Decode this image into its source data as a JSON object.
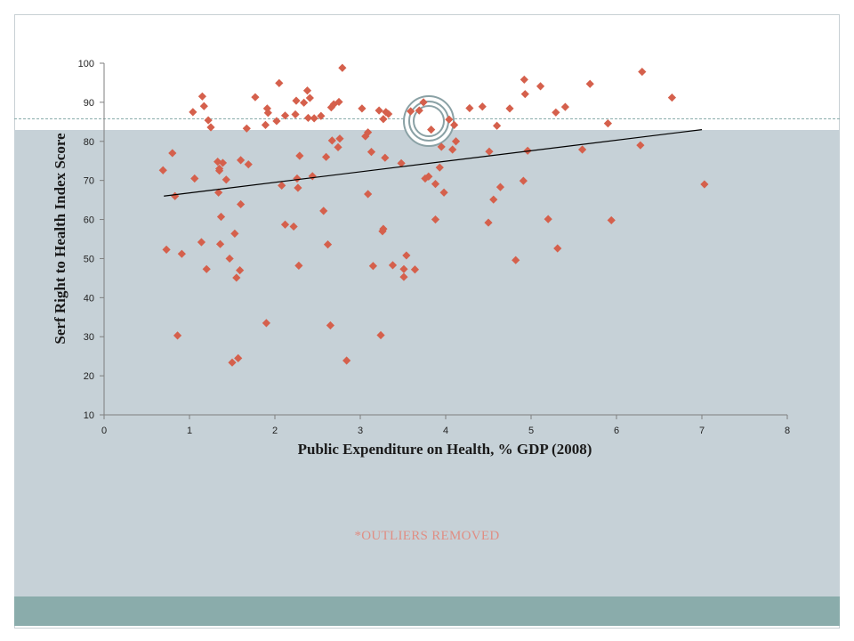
{
  "note": "*OUTLIERS REMOVED",
  "chart_data": {
    "type": "scatter",
    "xlabel": "Public Expenditure on Health, % GDP (2008)",
    "ylabel": "Serf Right to Health Index Score",
    "xlim": [
      0,
      8
    ],
    "ylim": [
      10,
      100
    ],
    "xticks": [
      0,
      1,
      2,
      3,
      4,
      5,
      6,
      7,
      8
    ],
    "yticks": [
      10,
      20,
      30,
      40,
      50,
      60,
      70,
      80,
      90,
      100
    ],
    "grid": false,
    "marker_color": "#d5604c",
    "trendline": {
      "x": [
        0.7,
        7.0
      ],
      "y": [
        66.0,
        83.0
      ],
      "color": "#000000"
    },
    "points": [
      [
        0.69,
        72.6
      ],
      [
        0.73,
        52.3
      ],
      [
        0.8,
        77.0
      ],
      [
        0.83,
        66.0
      ],
      [
        0.86,
        30.3
      ],
      [
        0.91,
        51.2
      ],
      [
        1.04,
        87.5
      ],
      [
        1.06,
        70.5
      ],
      [
        1.14,
        54.2
      ],
      [
        1.15,
        91.5
      ],
      [
        1.17,
        89.0
      ],
      [
        1.2,
        47.3
      ],
      [
        1.22,
        85.4
      ],
      [
        1.25,
        83.6
      ],
      [
        1.33,
        74.8
      ],
      [
        1.34,
        66.9
      ],
      [
        1.35,
        73.0
      ],
      [
        1.35,
        72.5
      ],
      [
        1.36,
        53.7
      ],
      [
        1.37,
        60.7
      ],
      [
        1.39,
        74.5
      ],
      [
        1.43,
        70.2
      ],
      [
        1.47,
        50.0
      ],
      [
        1.5,
        23.4
      ],
      [
        1.53,
        56.4
      ],
      [
        1.55,
        45.1
      ],
      [
        1.57,
        24.5
      ],
      [
        1.59,
        47.0
      ],
      [
        1.6,
        75.2
      ],
      [
        1.6,
        63.9
      ],
      [
        1.67,
        83.3
      ],
      [
        1.69,
        74.1
      ],
      [
        1.77,
        91.3
      ],
      [
        1.89,
        84.2
      ],
      [
        1.9,
        33.5
      ],
      [
        1.91,
        88.4
      ],
      [
        1.92,
        87.3
      ],
      [
        2.02,
        85.2
      ],
      [
        2.05,
        94.9
      ],
      [
        2.08,
        68.7
      ],
      [
        2.12,
        86.6
      ],
      [
        2.12,
        58.7
      ],
      [
        2.22,
        58.2
      ],
      [
        2.24,
        86.9
      ],
      [
        2.25,
        90.4
      ],
      [
        2.26,
        70.5
      ],
      [
        2.27,
        68.1
      ],
      [
        2.28,
        48.2
      ],
      [
        2.29,
        76.3
      ],
      [
        2.34,
        89.9
      ],
      [
        2.38,
        93.0
      ],
      [
        2.39,
        86.0
      ],
      [
        2.41,
        91.1
      ],
      [
        2.44,
        71.1
      ],
      [
        2.46,
        85.9
      ],
      [
        2.54,
        86.5
      ],
      [
        2.57,
        62.2
      ],
      [
        2.6,
        76.0
      ],
      [
        2.62,
        53.6
      ],
      [
        2.65,
        32.9
      ],
      [
        2.66,
        88.7
      ],
      [
        2.67,
        80.2
      ],
      [
        2.69,
        89.5
      ],
      [
        2.74,
        78.5
      ],
      [
        2.75,
        90.1
      ],
      [
        2.76,
        80.7
      ],
      [
        2.79,
        98.8
      ],
      [
        2.84,
        23.9
      ],
      [
        3.02,
        88.4
      ],
      [
        3.06,
        81.3
      ],
      [
        3.09,
        82.3
      ],
      [
        3.09,
        66.5
      ],
      [
        3.13,
        77.3
      ],
      [
        3.15,
        48.1
      ],
      [
        3.22,
        87.9
      ],
      [
        3.24,
        30.4
      ],
      [
        3.26,
        57.0
      ],
      [
        3.27,
        57.6
      ],
      [
        3.27,
        85.7
      ],
      [
        3.29,
        75.8
      ],
      [
        3.3,
        87.5
      ],
      [
        3.33,
        87.0
      ],
      [
        3.38,
        48.3
      ],
      [
        3.48,
        74.4
      ],
      [
        3.51,
        47.3
      ],
      [
        3.51,
        45.3
      ],
      [
        3.54,
        50.8
      ],
      [
        3.59,
        87.7
      ],
      [
        3.64,
        47.2
      ],
      [
        3.69,
        87.9
      ],
      [
        3.74,
        90.0
      ],
      [
        3.76,
        70.5
      ],
      [
        3.8,
        71.0
      ],
      [
        3.83,
        83.0
      ],
      [
        3.88,
        69.1
      ],
      [
        3.88,
        60.0
      ],
      [
        3.93,
        73.3
      ],
      [
        3.95,
        78.6
      ],
      [
        3.98,
        66.9
      ],
      [
        4.04,
        85.6
      ],
      [
        4.08,
        77.9
      ],
      [
        4.1,
        84.2
      ],
      [
        4.12,
        80.0
      ],
      [
        4.28,
        88.5
      ],
      [
        4.43,
        88.9
      ],
      [
        4.5,
        59.2
      ],
      [
        4.51,
        77.4
      ],
      [
        4.56,
        65.1
      ],
      [
        4.6,
        84.0
      ],
      [
        4.64,
        68.3
      ],
      [
        4.75,
        88.4
      ],
      [
        4.82,
        49.6
      ],
      [
        4.91,
        69.9
      ],
      [
        4.92,
        95.8
      ],
      [
        4.93,
        92.1
      ],
      [
        4.96,
        77.6
      ],
      [
        5.11,
        94.1
      ],
      [
        5.2,
        60.1
      ],
      [
        5.29,
        87.4
      ],
      [
        5.31,
        52.6
      ],
      [
        5.4,
        88.8
      ],
      [
        5.6,
        77.9
      ],
      [
        5.69,
        94.7
      ],
      [
        5.9,
        84.6
      ],
      [
        5.94,
        59.8
      ],
      [
        6.28,
        79.0
      ],
      [
        6.3,
        97.8
      ],
      [
        6.65,
        91.2
      ],
      [
        7.03,
        69.0
      ]
    ]
  }
}
